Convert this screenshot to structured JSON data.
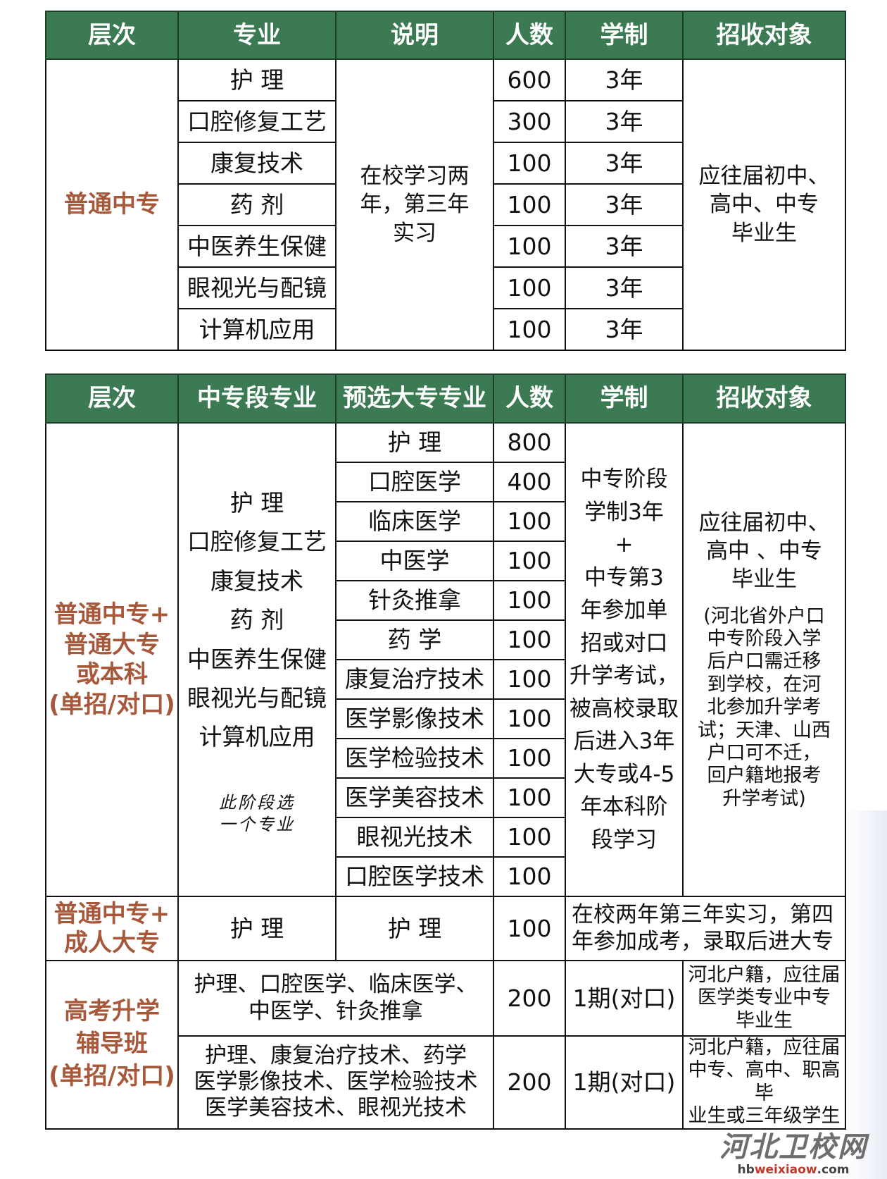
{
  "table1": {
    "headers": [
      "层次",
      "专业",
      "说明",
      "人数",
      "学制",
      "招收对象"
    ],
    "level": "普通中专",
    "note": "在校学习两\n年，第三年\n实习",
    "target": "应往届初中、\n高中、中专\n毕业生",
    "rows": [
      {
        "major": "护 理",
        "count": "600",
        "years": "3年"
      },
      {
        "major": "口腔修复工艺",
        "count": "300",
        "years": "3年"
      },
      {
        "major": "康复技术",
        "count": "100",
        "years": "3年"
      },
      {
        "major": "药 剂",
        "count": "100",
        "years": "3年"
      },
      {
        "major": "中医养生保健",
        "count": "100",
        "years": "3年"
      },
      {
        "major": "眼视光与配镜",
        "count": "100",
        "years": "3年"
      },
      {
        "major": "计算机应用",
        "count": "100",
        "years": "3年"
      }
    ]
  },
  "table2": {
    "headers": [
      "层次",
      "中专段专业",
      "预选大专专业",
      "人数",
      "学制",
      "招收对象"
    ],
    "section1": {
      "level": "普通中专+\n普通大专\n或本科\n(单招/对口)",
      "secondary_majors": "护 理\n口腔修复工艺\n康复技术\n药 剂\n中医养生保健\n眼视光与配镜\n计算机应用",
      "handwritten_note": "此阶段选\n一个专业",
      "duration": "中专阶段\n学制3年\n+\n中专第3\n年参加单\n招或对口\n升学考试，\n被高校录取\n后进入3年\n大专或4-5\n年本科阶\n段学习",
      "target": "应往届初中、\n高中 、中专\n毕业生",
      "target_note": "(河北省外户口\n中专阶段入学\n后户口需迁移\n到学校，在河\n北参加升学考\n试；天津、山西\n户口可不迁，\n回户籍地报考\n升学考试)",
      "rows": [
        {
          "major": "护 理",
          "count": "800"
        },
        {
          "major": "口腔医学",
          "count": "400"
        },
        {
          "major": "临床医学",
          "count": "100"
        },
        {
          "major": "中医学",
          "count": "100"
        },
        {
          "major": "针灸推拿",
          "count": "100"
        },
        {
          "major": "药 学",
          "count": "100"
        },
        {
          "major": "康复治疗技术",
          "count": "100"
        },
        {
          "major": "医学影像技术",
          "count": "100"
        },
        {
          "major": "医学检验技术",
          "count": "100"
        },
        {
          "major": "医学美容技术",
          "count": "100"
        },
        {
          "major": "眼视光技术",
          "count": "100"
        },
        {
          "major": "口腔医学技术",
          "count": "100"
        }
      ]
    },
    "section2": {
      "level": "普通中专+\n成人大专",
      "secondary_major": "护 理",
      "college_major": "护 理",
      "count": "100",
      "description": "在校两年第三年实习，第四\n年参加成考，录取后进大专"
    },
    "section3": {
      "level": "高考升学\n辅导班\n(单招/对口)",
      "rows": [
        {
          "majors": "护理、口腔医学、临床医学、\n中医学、针灸推拿",
          "count": "200",
          "duration": "1期(对口)",
          "target": "河北户籍，应往届\n医学类专业中专\n毕业生"
        },
        {
          "majors": "护理、康复治疗技术、药学\n医学影像技术、医学检验技术\n医学美容技术、眼视光技术",
          "count": "200",
          "duration": "1期(对口)",
          "target": "河北户籍，应往届\n中专、高中、职高毕\n业生或三年级学生"
        }
      ]
    }
  },
  "watermark": {
    "name": "河北卫校网",
    "url_prefix": "hb",
    "url_highlight": "weixiaow",
    "url_suffix": ".com"
  },
  "colors": {
    "header_bg": "#3b7a52",
    "level_text": "#a8583a"
  }
}
